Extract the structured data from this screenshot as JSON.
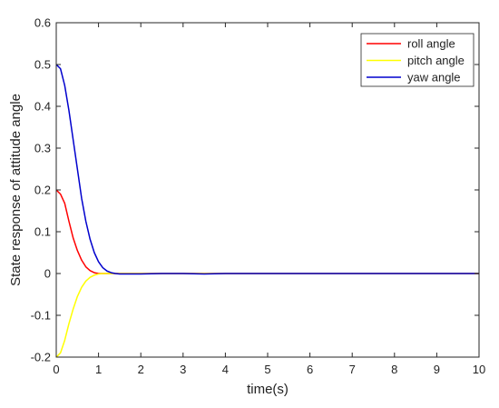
{
  "chart_data": {
    "type": "line",
    "xlabel": "time(s)",
    "ylabel": "State response of attitude angle",
    "xlim": [
      0,
      10
    ],
    "ylim": [
      -0.2,
      0.6
    ],
    "x_ticks": [
      0,
      1,
      2,
      3,
      4,
      5,
      6,
      7,
      8,
      9,
      10
    ],
    "y_ticks": [
      -0.2,
      -0.1,
      0,
      0.1,
      0.2,
      0.3,
      0.4,
      0.5,
      0.6
    ],
    "x_tick_labels": [
      "0",
      "1",
      "2",
      "3",
      "4",
      "5",
      "6",
      "7",
      "8",
      "9",
      "10"
    ],
    "y_tick_labels": [
      "-0.2",
      "-0.1",
      "0",
      "0.1",
      "0.2",
      "0.3",
      "0.4",
      "0.5",
      "0.6"
    ],
    "grid": false,
    "legend_position": "top-right",
    "series": [
      {
        "name": "roll angle",
        "color": "#ff0000",
        "x": [
          0,
          0.1,
          0.2,
          0.3,
          0.4,
          0.5,
          0.6,
          0.7,
          0.8,
          0.9,
          1.0,
          1.2,
          1.5,
          2.0,
          3.0,
          4.0,
          5.0,
          6.0,
          7.0,
          8.0,
          9.0,
          10.0
        ],
        "y": [
          0.2,
          0.19,
          0.168,
          0.125,
          0.085,
          0.055,
          0.032,
          0.016,
          0.007,
          0.002,
          0.0,
          0.0,
          0.0,
          0.0,
          0.0,
          0.0,
          0.0,
          0.0,
          0.0,
          0.0,
          0.0,
          0.0
        ]
      },
      {
        "name": "pitch angle",
        "color": "#ffff00",
        "x": [
          0,
          0.1,
          0.2,
          0.3,
          0.4,
          0.5,
          0.6,
          0.7,
          0.8,
          0.9,
          1.0,
          1.1,
          1.2,
          1.3,
          1.5,
          2.0,
          3.0,
          4.0,
          5.0,
          6.0,
          7.0,
          8.0,
          9.0,
          10.0
        ],
        "y": [
          -0.2,
          -0.19,
          -0.16,
          -0.12,
          -0.085,
          -0.055,
          -0.033,
          -0.018,
          -0.009,
          -0.004,
          -0.001,
          0.0,
          0.0,
          0.0,
          0.0,
          0.0,
          0.0,
          0.0,
          0.0,
          0.0,
          0.0,
          0.0,
          0.0,
          0.0
        ]
      },
      {
        "name": "yaw angle",
        "color": "#0000cd",
        "x": [
          0,
          0.1,
          0.2,
          0.3,
          0.4,
          0.5,
          0.6,
          0.7,
          0.8,
          0.9,
          1.0,
          1.1,
          1.2,
          1.3,
          1.4,
          1.5,
          1.6,
          2.0,
          2.5,
          3.0,
          3.5,
          4.0,
          4.5,
          5.0,
          5.5,
          6.0,
          6.5,
          7.0,
          7.5,
          8.0,
          8.5,
          9.0,
          9.5,
          10.0
        ],
        "y": [
          0.5,
          0.49,
          0.45,
          0.39,
          0.32,
          0.25,
          0.18,
          0.125,
          0.082,
          0.05,
          0.028,
          0.014,
          0.006,
          0.002,
          0.0,
          -0.001,
          -0.001,
          -0.001,
          0.0,
          0.0,
          -0.001,
          0.0,
          0.0,
          0.0,
          0.0,
          0.0,
          0.0,
          0.0,
          0.0,
          0.0,
          0.0,
          0.0,
          0.0,
          0.0
        ]
      }
    ]
  }
}
